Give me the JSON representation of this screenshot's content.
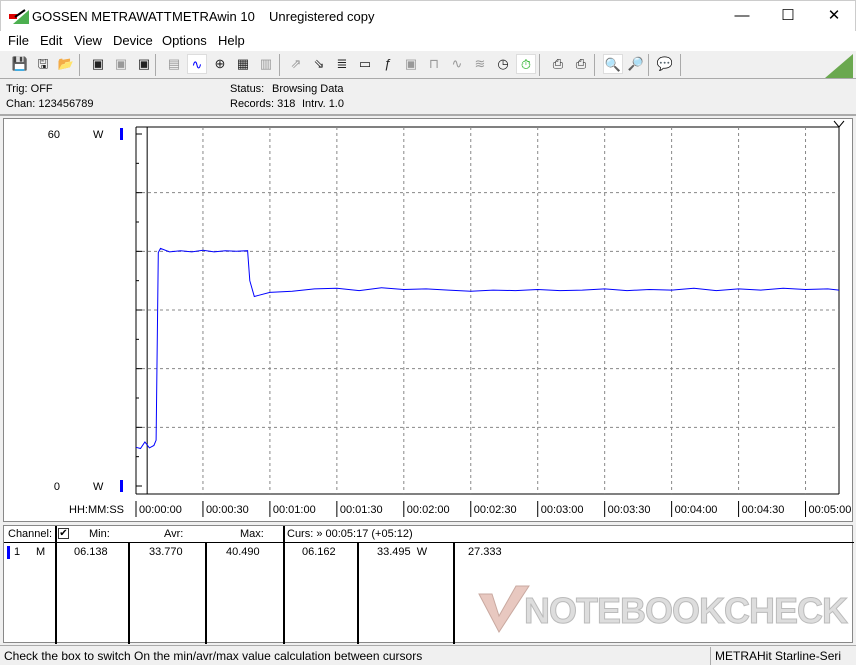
{
  "window": {
    "company": "GOSSEN METRAWATT",
    "app": "METRAwin 10",
    "registration": "Unregistered copy",
    "controls": [
      "minimize",
      "maximize",
      "close"
    ]
  },
  "menu": [
    "File",
    "Edit",
    "View",
    "Device",
    "Options",
    "Help"
  ],
  "toolbar": [
    {
      "icon": "save-icon",
      "state": "normal"
    },
    {
      "icon": "save-as-icon",
      "state": "normal"
    },
    {
      "icon": "open-folder-icon",
      "state": "normal"
    },
    {
      "icon": "device-read-icon",
      "state": "normal"
    },
    {
      "icon": "device-transfer-icon",
      "state": "disabled"
    },
    {
      "icon": "device-memory-icon",
      "state": "normal"
    },
    {
      "icon": "numeric-display-icon",
      "state": "disabled"
    },
    {
      "icon": "waveform-view-icon",
      "state": "active"
    },
    {
      "icon": "crosshair-icon",
      "state": "normal"
    },
    {
      "icon": "table-view-icon",
      "state": "normal"
    },
    {
      "icon": "histogram-icon",
      "state": "disabled"
    },
    {
      "icon": "export-icon",
      "state": "disabled"
    },
    {
      "icon": "import-icon",
      "state": "normal"
    },
    {
      "icon": "data-list-icon",
      "state": "normal"
    },
    {
      "icon": "monitor-icon",
      "state": "normal"
    },
    {
      "icon": "formula-icon",
      "state": "normal"
    },
    {
      "icon": "device-settings-icon",
      "state": "disabled"
    },
    {
      "icon": "trigger-icon",
      "state": "disabled"
    },
    {
      "icon": "sine-icon",
      "state": "disabled"
    },
    {
      "icon": "multi-wave-icon",
      "state": "disabled"
    },
    {
      "icon": "schedule-clock-icon",
      "state": "normal"
    },
    {
      "icon": "stopwatch-icon",
      "state": "active"
    },
    {
      "icon": "print-preview-icon",
      "state": "normal"
    },
    {
      "icon": "print-icon",
      "state": "normal"
    },
    {
      "icon": "zoom-wave-icon",
      "state": "active"
    },
    {
      "icon": "zoom-peak-icon",
      "state": "normal"
    },
    {
      "icon": "comment-icon",
      "state": "normal"
    }
  ],
  "info": {
    "trig": "Trig: OFF",
    "chan": "Chan:  123456789",
    "status_label": "Status:",
    "status_value": "Browsing Data",
    "records": "Records: 318",
    "interval": "Intrv. 1.0"
  },
  "chart_data": {
    "type": "line",
    "y_unit": "W",
    "ylim": [
      0,
      60
    ],
    "y_tick_labels": [
      "60",
      "0"
    ],
    "x_label": "HH:MM:SS",
    "x_tick_labels": [
      "00:00:00",
      "00:00:30",
      "00:01:00",
      "00:01:30",
      "00:02:00",
      "00:02:30",
      "00:03:00",
      "00:03:30",
      "00:04:00",
      "00:04:30",
      "00:05:00"
    ],
    "xlim_seconds": [
      0,
      315
    ],
    "grid": true,
    "line_color": "#0000ff",
    "cursor_time_seconds": 5,
    "series": [
      {
        "points": [
          [
            0,
            6.6
          ],
          [
            2,
            6.4
          ],
          [
            4,
            7.5
          ],
          [
            6,
            6.5
          ],
          [
            8,
            6.9
          ],
          [
            9,
            7.8
          ],
          [
            10,
            39.8
          ],
          [
            11,
            40.5
          ],
          [
            15,
            39.9
          ],
          [
            20,
            40.1
          ],
          [
            25,
            39.9
          ],
          [
            30,
            40.2
          ],
          [
            35,
            39.9
          ],
          [
            40,
            40.1
          ],
          [
            45,
            40.0
          ],
          [
            50,
            40.1
          ],
          [
            51,
            35
          ],
          [
            53,
            32.3
          ],
          [
            55,
            32.5
          ],
          [
            60,
            33.0
          ],
          [
            70,
            33.2
          ],
          [
            80,
            33.6
          ],
          [
            90,
            33.7
          ],
          [
            100,
            33.3
          ],
          [
            110,
            33.8
          ],
          [
            120,
            33.5
          ],
          [
            130,
            33.6
          ],
          [
            140,
            33.4
          ],
          [
            150,
            33.2
          ],
          [
            160,
            33.4
          ],
          [
            170,
            33.3
          ],
          [
            180,
            33.5
          ],
          [
            190,
            33.3
          ],
          [
            200,
            33.4
          ],
          [
            210,
            33.6
          ],
          [
            220,
            33.3
          ],
          [
            230,
            33.5
          ],
          [
            240,
            33.4
          ],
          [
            250,
            33.7
          ],
          [
            260,
            33.3
          ],
          [
            270,
            33.6
          ],
          [
            280,
            33.4
          ],
          [
            290,
            33.7
          ],
          [
            300,
            33.5
          ],
          [
            310,
            33.6
          ],
          [
            315,
            33.4
          ]
        ]
      }
    ]
  },
  "table": {
    "headers": {
      "channel": "Channel:",
      "min": "Min:",
      "avr": "Avr:",
      "max": "Max:",
      "cursor": "Curs: » 00:05:17 (+05:12)"
    },
    "checkbox_checked": true,
    "row": {
      "num": "1",
      "mode": "M",
      "min": "06.138",
      "avr": "33.770",
      "max": "40.490",
      "cur1": "06.162",
      "cur2": "33.495  W",
      "diff": "27.333"
    },
    "watermark": "NOTEBOOKCHECK"
  },
  "status": {
    "hint": "Check the box to switch On the min/avr/max value calculation between cursors",
    "device": "METRAHit Starline-Seri"
  }
}
